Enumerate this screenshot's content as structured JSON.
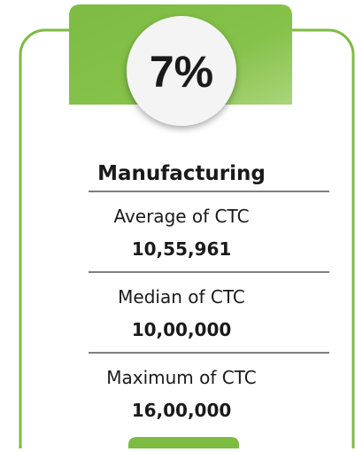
{
  "card": {
    "percent": "7%",
    "title": "Manufacturing",
    "stats": [
      {
        "label": "Average of CTC",
        "value": "10,55,961"
      },
      {
        "label": "Median of CTC",
        "value": "10,00,000"
      },
      {
        "label": "Maximum of CTC",
        "value": "16,00,000"
      }
    ]
  }
}
